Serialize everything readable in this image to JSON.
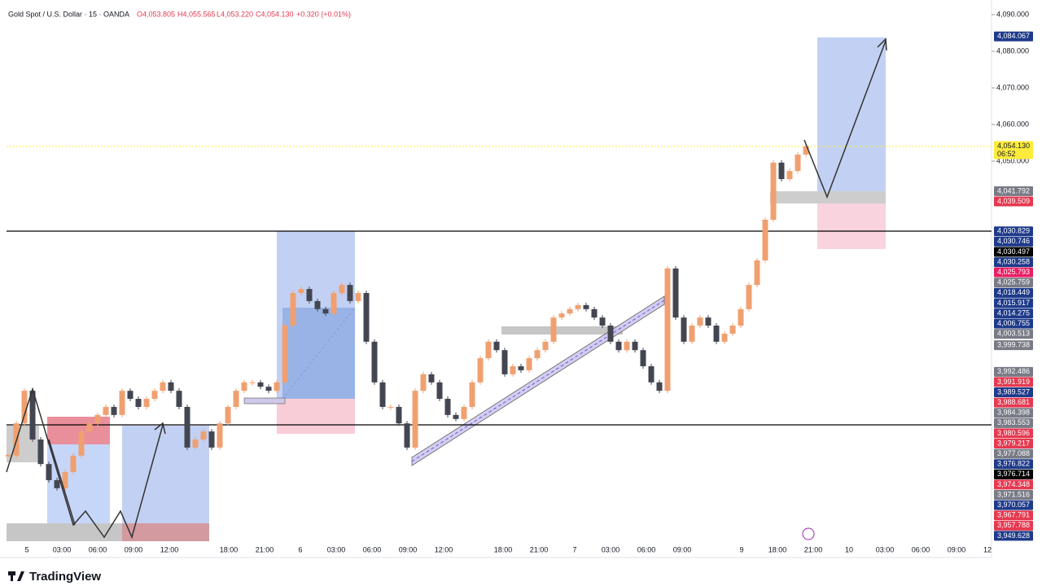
{
  "header": {
    "symbol": "Gold Spot / U.S. Dollar · 15 · OANDA",
    "open": "O4,053.805",
    "high": "H4,055.565",
    "low": "L4,053.220",
    "close": "C4,054.130",
    "change": "+0.320 (+0.01%)"
  },
  "chart_data": {
    "type": "candlestick",
    "closes": [
      3969.6,
      3978.4,
      3987.3,
      3974.0,
      3967.3,
      3962.9,
      3960.7,
      3965.1,
      3969.6,
      3976.2,
      3978.4,
      3980.7,
      3982.9,
      3980.7,
      3987.3,
      3985.1,
      3982.9,
      3985.1,
      3987.3,
      3989.6,
      3987.3,
      3982.9,
      3971.8,
      3974.0,
      3976.2,
      3971.8,
      3978.4,
      3982.9,
      3987.3,
      3989.6,
      3989.6,
      3988.4,
      3987.3,
      3989.6,
      4005.1,
      4014.0,
      4015.1,
      4011.8,
      4009.6,
      4008.4,
      4014.0,
      4016.2,
      4011.8,
      4014.0,
      4000.7,
      3989.6,
      3982.9,
      3982.9,
      3978.4,
      3971.8,
      3987.3,
      3991.8,
      3989.6,
      3985.1,
      3980.7,
      3979.6,
      3982.9,
      3989.6,
      3996.2,
      4000.7,
      3998.4,
      3991.8,
      3994.0,
      3992.9,
      3996.2,
      3998.4,
      4000.7,
      4007.3,
      4008.4,
      4009.6,
      4010.7,
      4009.6,
      4007.3,
      4005.1,
      4000.7,
      3998.4,
      4000.7,
      3998.4,
      3994.0,
      3989.6,
      3987.3,
      4020.7,
      4007.3,
      4000.7,
      4005.1,
      4007.3,
      4005.1,
      4000.7,
      4002.9,
      4005.1,
      4009.6,
      4016.2,
      4022.9,
      4034.0,
      4049.6,
      4045.1,
      4047.3,
      4051.8,
      4054.1
    ],
    "up_color": "#f0a070",
    "down_color": "#434651",
    "ylim": [
      3940,
      4092
    ],
    "yticks": [
      {
        "value": 4090,
        "label": "4,090.000"
      },
      {
        "value": 4080,
        "label": "4,080.000"
      },
      {
        "value": 4070,
        "label": "4,070.000"
      },
      {
        "value": 4060,
        "label": "4,060.000"
      },
      {
        "value": 4050,
        "label": "4,050.000"
      }
    ],
    "price_tags": [
      {
        "value": 4084.067,
        "label": "4,084.067",
        "color": "#1e3a8a"
      },
      {
        "value": 4054.13,
        "label": "4,054.130",
        "color": "#ffeb3b"
      },
      {
        "value": 4041.792,
        "label": "4,041.792",
        "color": "#787b86"
      },
      {
        "value": 4039.509,
        "label": "4,039.509",
        "color": "#e53950"
      },
      {
        "value": 4030.829,
        "label": "4,030.829",
        "color": "#1e3a8a"
      },
      {
        "value": 4030.746,
        "label": "4,030.746",
        "color": "#1e3a8a"
      },
      {
        "value": 4030.497,
        "label": "4,030.497",
        "color": "#000000"
      },
      {
        "value": 4030.258,
        "label": "4,030.258",
        "color": "#1e3a8a"
      },
      {
        "value": 4025.793,
        "label": "4,025.793",
        "color": "#e91e63"
      },
      {
        "value": 4025.759,
        "label": "4,025.759",
        "color": "#787b86"
      },
      {
        "value": 4018.449,
        "label": "4,018.449",
        "color": "#1e3a8a"
      },
      {
        "value": 4015.917,
        "label": "4,015.917",
        "color": "#1e3a8a"
      },
      {
        "value": 4014.275,
        "label": "4,014.275",
        "color": "#1e3a8a"
      },
      {
        "value": 4006.755,
        "label": "4,006.755",
        "color": "#1e3a8a"
      },
      {
        "value": 4003.513,
        "label": "4,003.513",
        "color": "#787b86"
      },
      {
        "value": 3999.738,
        "label": "3,999.738",
        "color": "#787b86"
      },
      {
        "value": 3992.486,
        "label": "3,992.486",
        "color": "#787b86"
      },
      {
        "value": 3991.919,
        "label": "3,991.919",
        "color": "#e53950"
      },
      {
        "value": 3989.527,
        "label": "3,989.527",
        "color": "#1e3a8a"
      },
      {
        "value": 3988.681,
        "label": "3,988.681",
        "color": "#e53950"
      },
      {
        "value": 3984.398,
        "label": "3,984.398",
        "color": "#787b86"
      },
      {
        "value": 3983.553,
        "label": "3,983.553",
        "color": "#787b86"
      },
      {
        "value": 3980.596,
        "label": "3,980.596",
        "color": "#e53950"
      },
      {
        "value": 3979.217,
        "label": "3,979.217",
        "color": "#e53950"
      },
      {
        "value": 3977.088,
        "label": "3,977.088",
        "color": "#787b86"
      },
      {
        "value": 3976.822,
        "label": "3,976.822",
        "color": "#1e3a8a"
      },
      {
        "value": 3976.714,
        "label": "3,976.714",
        "color": "#000000"
      },
      {
        "value": 3974.348,
        "label": "3,974.348",
        "color": "#e53950"
      },
      {
        "value": 3971.516,
        "label": "3,971.516",
        "color": "#787b86"
      },
      {
        "value": 3970.057,
        "label": "3,970.057",
        "color": "#1e3a8a"
      },
      {
        "value": 3967.791,
        "label": "3,967.791",
        "color": "#e53950"
      },
      {
        "value": 3957.788,
        "label": "3,957.788",
        "color": "#e53950"
      },
      {
        "value": 3949.628,
        "label": "3,949.628",
        "color": "#1e3a8a"
      }
    ],
    "countdown": "06:52",
    "time_labels": [
      "5",
      "03:00",
      "06:00",
      "09:00",
      "12:00",
      "18:00",
      "21:00",
      "6",
      "03:00",
      "06:00",
      "09:00",
      "12:00",
      "18:00",
      "21:00",
      "7",
      "03:00",
      "06:00",
      "09:00",
      "9",
      "18:00",
      "21:00",
      "10",
      "03:00",
      "06:00",
      "09:00",
      "12"
    ]
  },
  "footer": {
    "brand": "TradingView"
  }
}
